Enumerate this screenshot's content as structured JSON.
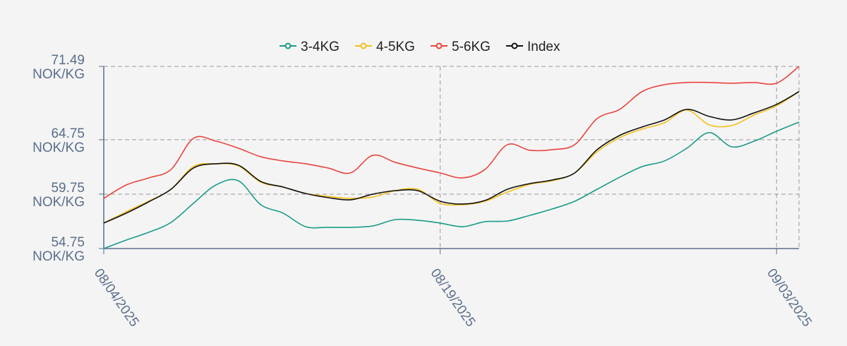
{
  "chart_data": {
    "type": "line",
    "x": [
      "08/04/2025",
      "08/05/2025",
      "08/06/2025",
      "08/07/2025",
      "08/08/2025",
      "08/09/2025",
      "08/10/2025",
      "08/11/2025",
      "08/12/2025",
      "08/13/2025",
      "08/14/2025",
      "08/15/2025",
      "08/16/2025",
      "08/17/2025",
      "08/18/2025",
      "08/19/2025",
      "08/20/2025",
      "08/21/2025",
      "08/22/2025",
      "08/23/2025",
      "08/24/2025",
      "08/25/2025",
      "08/26/2025",
      "08/27/2025",
      "08/28/2025",
      "08/29/2025",
      "08/30/2025",
      "08/31/2025",
      "09/01/2025",
      "09/02/2025",
      "09/03/2025",
      "09/04/2025"
    ],
    "series": [
      {
        "name": "3-4KG",
        "color": "#1a9a8a",
        "values": [
          54.75,
          55.53,
          56.24,
          57.15,
          58.91,
          60.59,
          60.98,
          58.78,
          58.0,
          56.76,
          56.7,
          56.7,
          56.83,
          57.41,
          57.35,
          57.09,
          56.76,
          57.22,
          57.28,
          57.8,
          58.39,
          59.1,
          60.2,
          61.3,
          62.28,
          62.8,
          63.97,
          65.4,
          64.1,
          64.62,
          65.53,
          66.37
        ]
      },
      {
        "name": "4-5KG",
        "color": "#f2c01c",
        "values": [
          57.09,
          58.13,
          59.1,
          60.2,
          62.28,
          62.54,
          62.35,
          60.85,
          60.4,
          59.81,
          59.55,
          59.36,
          59.49,
          60.07,
          60.2,
          58.91,
          58.78,
          59.1,
          59.94,
          60.66,
          60.98,
          61.7,
          63.65,
          64.94,
          65.72,
          66.31,
          67.48,
          66.11,
          66.05,
          67.02,
          67.87,
          69.17
        ]
      },
      {
        "name": "5-6KG",
        "color": "#e8453c",
        "values": [
          59.36,
          60.59,
          61.24,
          62.02,
          64.88,
          64.62,
          63.97,
          63.19,
          62.8,
          62.54,
          62.15,
          61.7,
          63.32,
          62.67,
          62.15,
          61.7,
          61.24,
          62.02,
          64.3,
          63.78,
          63.84,
          64.3,
          66.7,
          67.54,
          69.17,
          69.81,
          70.01,
          70.01,
          69.94,
          70.01,
          69.94,
          71.49
        ]
      },
      {
        "name": "Index",
        "color": "#111111",
        "values": [
          57.09,
          58.0,
          59.04,
          60.2,
          62.15,
          62.54,
          62.41,
          60.92,
          60.4,
          59.81,
          59.43,
          59.23,
          59.75,
          60.07,
          60.07,
          59.1,
          58.84,
          59.17,
          60.2,
          60.72,
          61.05,
          61.7,
          63.84,
          65.14,
          65.92,
          66.57,
          67.54,
          66.89,
          66.57,
          67.22,
          68.0,
          69.17
        ]
      }
    ],
    "xlim": [
      "08/04/2025",
      "09/04/2025"
    ],
    "xticks": [
      "08/04/2025",
      "08/19/2025",
      "09/03/2025"
    ],
    "ylim": [
      54.75,
      71.49
    ],
    "yticks": [
      {
        "value": 54.75,
        "label": "54.75 NOK/KG"
      },
      {
        "value": 59.75,
        "label": "59.75 NOK/KG"
      },
      {
        "value": 64.75,
        "label": "64.75 NOK/KG"
      },
      {
        "value": 71.49,
        "label": "71.49 NOK/KG"
      }
    ],
    "grid": true,
    "legend": "top"
  }
}
